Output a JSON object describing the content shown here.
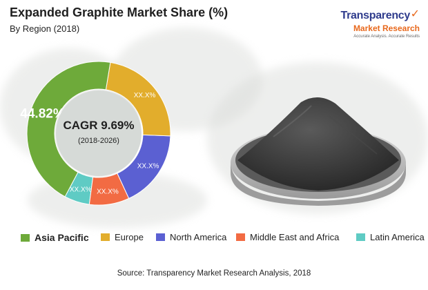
{
  "title": "Expanded Graphite Market Share (%)",
  "subtitle": "By Region (2018)",
  "logo": {
    "main": "Transparency",
    "sub": "Market Research",
    "tagline": "Accurate Analysis. Accurate Results"
  },
  "center": {
    "cagr_label": "CAGR 9.69%",
    "period": "(2018-2026)"
  },
  "source": "Source: Transparency Market Research Analysis, 2018",
  "chart_data": {
    "type": "pie",
    "title": "Expanded Graphite Market Share (%)",
    "subtitle": "By Region (2018)",
    "legend_position": "bottom",
    "slices": [
      {
        "name": "Asia Pacific",
        "value": 44.82,
        "label": "44.82%",
        "color": "#6eaa3a"
      },
      {
        "name": "Europe",
        "value": 23.0,
        "label": "XX.X%",
        "color": "#e2ad2c"
      },
      {
        "name": "North America",
        "value": 17.5,
        "label": "XX.X%",
        "color": "#5b60d2"
      },
      {
        "name": "Middle East and Africa",
        "value": 9.0,
        "label": "XX.X%",
        "color": "#f26b43"
      },
      {
        "name": "Latin America",
        "value": 5.68,
        "label": "XX.X%",
        "color": "#5fcbc4"
      }
    ]
  }
}
